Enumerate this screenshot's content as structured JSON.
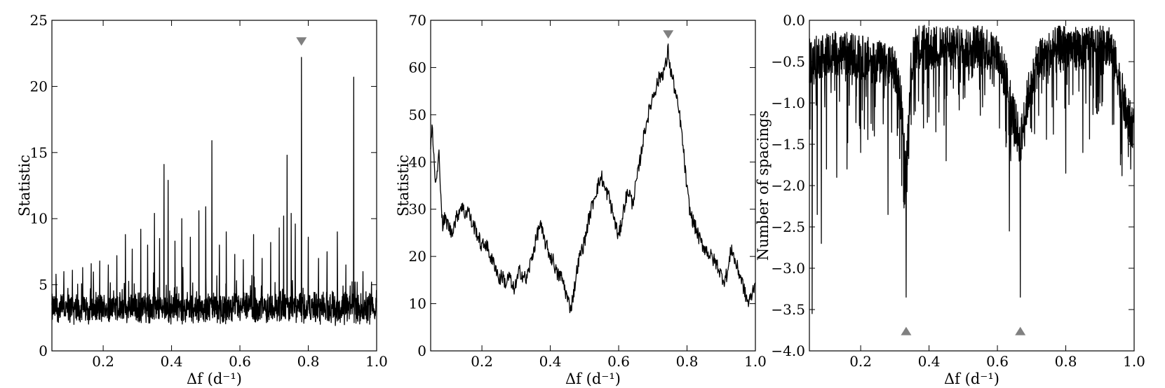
{
  "chart_data": [
    {
      "type": "line",
      "xlabel": "Δf (d⁻¹)",
      "ylabel": "Statistic",
      "xlim": [
        0.05,
        1.0
      ],
      "ylim": [
        0,
        25
      ],
      "xticks": [
        0.2,
        0.4,
        0.6,
        0.8,
        1.0
      ],
      "xtick_labels": [
        "0.2",
        "0.4",
        "0.6",
        "0.8",
        "1.0"
      ],
      "yticks": [
        0,
        5,
        10,
        15,
        20,
        25
      ],
      "ytick_labels": [
        "0",
        "5",
        "10",
        "15",
        "20",
        "25"
      ],
      "grid": false,
      "color": "#000000",
      "noise": {
        "baseline": 3.2,
        "amplitude": 1.1,
        "x_start": 0.05,
        "x_end": 1.0
      },
      "peaks": [
        {
          "x": 0.062,
          "y": 5.8
        },
        {
          "x": 0.085,
          "y": 6.0
        },
        {
          "x": 0.11,
          "y": 6.1
        },
        {
          "x": 0.14,
          "y": 6.3
        },
        {
          "x": 0.165,
          "y": 6.6
        },
        {
          "x": 0.19,
          "y": 6.8
        },
        {
          "x": 0.215,
          "y": 6.5
        },
        {
          "x": 0.24,
          "y": 7.2
        },
        {
          "x": 0.265,
          "y": 8.8
        },
        {
          "x": 0.285,
          "y": 7.7
        },
        {
          "x": 0.31,
          "y": 9.2
        },
        {
          "x": 0.33,
          "y": 8.0
        },
        {
          "x": 0.35,
          "y": 10.4
        },
        {
          "x": 0.365,
          "y": 8.5
        },
        {
          "x": 0.378,
          "y": 14.1
        },
        {
          "x": 0.39,
          "y": 12.9
        },
        {
          "x": 0.41,
          "y": 8.3
        },
        {
          "x": 0.43,
          "y": 10.0
        },
        {
          "x": 0.455,
          "y": 8.6
        },
        {
          "x": 0.48,
          "y": 10.6
        },
        {
          "x": 0.5,
          "y": 10.9
        },
        {
          "x": 0.518,
          "y": 15.9
        },
        {
          "x": 0.54,
          "y": 8.0
        },
        {
          "x": 0.56,
          "y": 9.0
        },
        {
          "x": 0.585,
          "y": 7.3
        },
        {
          "x": 0.61,
          "y": 6.9
        },
        {
          "x": 0.64,
          "y": 8.8
        },
        {
          "x": 0.665,
          "y": 7.0
        },
        {
          "x": 0.69,
          "y": 8.2
        },
        {
          "x": 0.715,
          "y": 9.3
        },
        {
          "x": 0.728,
          "y": 10.2
        },
        {
          "x": 0.738,
          "y": 14.8
        },
        {
          "x": 0.75,
          "y": 10.4
        },
        {
          "x": 0.762,
          "y": 9.6
        },
        {
          "x": 0.78,
          "y": 22.2
        },
        {
          "x": 0.8,
          "y": 8.6
        },
        {
          "x": 0.83,
          "y": 7.0
        },
        {
          "x": 0.855,
          "y": 7.5
        },
        {
          "x": 0.885,
          "y": 9.0
        },
        {
          "x": 0.91,
          "y": 6.5
        },
        {
          "x": 0.933,
          "y": 20.7
        },
        {
          "x": 0.96,
          "y": 6.0
        },
        {
          "x": 0.985,
          "y": 5.2
        }
      ],
      "markers": [
        {
          "x": 0.78,
          "y": 23.4,
          "shape": "triangle-down"
        }
      ]
    },
    {
      "type": "line",
      "xlabel": "Δf (d⁻¹)",
      "ylabel": "Statistic",
      "xlim": [
        0.05,
        1.0
      ],
      "ylim": [
        0,
        70
      ],
      "xticks": [
        0.2,
        0.4,
        0.6,
        0.8,
        1.0
      ],
      "xtick_labels": [
        "0.2",
        "0.4",
        "0.6",
        "0.8",
        "1.0"
      ],
      "yticks": [
        0,
        10,
        20,
        30,
        40,
        50,
        60,
        70
      ],
      "ytick_labels": [
        "0",
        "10",
        "20",
        "30",
        "40",
        "50",
        "60",
        "70"
      ],
      "grid": false,
      "color": "#000000",
      "x": [
        0.05,
        0.055,
        0.06,
        0.065,
        0.07,
        0.075,
        0.08,
        0.085,
        0.09,
        0.1,
        0.11,
        0.12,
        0.13,
        0.14,
        0.15,
        0.16,
        0.17,
        0.18,
        0.19,
        0.2,
        0.21,
        0.22,
        0.23,
        0.24,
        0.25,
        0.26,
        0.27,
        0.28,
        0.29,
        0.3,
        0.31,
        0.32,
        0.33,
        0.34,
        0.35,
        0.36,
        0.37,
        0.38,
        0.39,
        0.4,
        0.41,
        0.42,
        0.43,
        0.44,
        0.45,
        0.46,
        0.47,
        0.48,
        0.49,
        0.5,
        0.51,
        0.52,
        0.53,
        0.54,
        0.55,
        0.56,
        0.57,
        0.58,
        0.59,
        0.6,
        0.61,
        0.62,
        0.63,
        0.64,
        0.65,
        0.66,
        0.67,
        0.68,
        0.69,
        0.7,
        0.71,
        0.72,
        0.73,
        0.74,
        0.745,
        0.75,
        0.76,
        0.77,
        0.78,
        0.79,
        0.8,
        0.81,
        0.82,
        0.83,
        0.84,
        0.85,
        0.86,
        0.87,
        0.88,
        0.89,
        0.9,
        0.91,
        0.92,
        0.93,
        0.94,
        0.95,
        0.96,
        0.97,
        0.98,
        0.99,
        1.0
      ],
      "y": [
        44,
        47,
        40,
        35,
        38,
        42,
        33,
        26,
        28,
        27,
        25,
        27,
        29,
        31,
        29,
        30,
        27,
        26,
        24,
        22,
        23,
        21,
        19,
        18,
        15,
        16,
        14,
        16,
        13,
        14,
        17,
        16,
        15,
        18,
        21,
        24,
        27,
        24,
        22,
        20,
        19,
        16,
        16,
        14,
        11,
        9,
        13,
        18,
        21,
        23,
        27,
        30,
        33,
        35,
        37,
        34,
        33,
        30,
        27,
        24,
        28,
        32,
        34,
        31,
        35,
        39,
        44,
        48,
        51,
        54,
        56,
        58,
        59,
        61,
        64,
        60,
        57,
        53,
        49,
        42,
        34,
        29,
        27,
        25,
        23,
        22,
        21,
        20,
        19,
        18,
        16,
        15,
        17,
        22,
        19,
        17,
        15,
        12,
        10,
        12,
        15
      ],
      "markers": [
        {
          "x": 0.745,
          "y": 67,
          "shape": "triangle-down"
        }
      ]
    },
    {
      "type": "line",
      "xlabel": "Δf (d⁻¹)",
      "ylabel": "Number of spacings",
      "xlim": [
        0.05,
        1.0
      ],
      "ylim": [
        -4.0,
        0.0
      ],
      "xticks": [
        0.2,
        0.4,
        0.6,
        0.8,
        1.0
      ],
      "xtick_labels": [
        "0.2",
        "0.4",
        "0.6",
        "0.8",
        "1.0"
      ],
      "yticks": [
        -4.0,
        -3.5,
        -3.0,
        -2.5,
        -2.0,
        -1.5,
        -1.0,
        -0.5,
        0.0
      ],
      "ytick_labels": [
        "−4.0",
        "−3.5",
        "−3.0",
        "−2.5",
        "−2.0",
        "−1.5",
        "−1.0",
        "−0.5",
        "0.0"
      ],
      "grid": false,
      "color": "#000000",
      "envelope": {
        "x": [
          0.05,
          0.1,
          0.15,
          0.2,
          0.25,
          0.3,
          0.32,
          0.333,
          0.345,
          0.36,
          0.4,
          0.45,
          0.5,
          0.55,
          0.6,
          0.63,
          0.65,
          0.667,
          0.69,
          0.72,
          0.75,
          0.8,
          0.85,
          0.9,
          0.93,
          0.95,
          0.98,
          1.0
        ],
        "y": [
          -0.5,
          -0.4,
          -0.4,
          -0.45,
          -0.5,
          -0.6,
          -1.0,
          -1.9,
          -0.7,
          -0.3,
          -0.35,
          -0.3,
          -0.35,
          -0.3,
          -0.4,
          -0.8,
          -1.2,
          -1.5,
          -0.9,
          -0.5,
          -0.4,
          -0.3,
          -0.35,
          -0.25,
          -0.3,
          -0.6,
          -1.2,
          -1.3
        ]
      },
      "dips": [
        {
          "x": 0.058,
          "y": -3.55
        },
        {
          "x": 0.073,
          "y": -2.35
        },
        {
          "x": 0.085,
          "y": -2.7
        },
        {
          "x": 0.1,
          "y": -1.8
        },
        {
          "x": 0.13,
          "y": -1.9
        },
        {
          "x": 0.16,
          "y": -1.8
        },
        {
          "x": 0.2,
          "y": -1.6
        },
        {
          "x": 0.24,
          "y": -1.4
        },
        {
          "x": 0.28,
          "y": -2.35
        },
        {
          "x": 0.32,
          "y": -2.0
        },
        {
          "x": 0.333,
          "y": -3.35
        },
        {
          "x": 0.36,
          "y": -1.1
        },
        {
          "x": 0.42,
          "y": -1.35
        },
        {
          "x": 0.45,
          "y": -1.7
        },
        {
          "x": 0.5,
          "y": -0.95
        },
        {
          "x": 0.55,
          "y": -1.15
        },
        {
          "x": 0.59,
          "y": -0.8
        },
        {
          "x": 0.635,
          "y": -2.55
        },
        {
          "x": 0.667,
          "y": -3.35
        },
        {
          "x": 0.7,
          "y": -1.35
        },
        {
          "x": 0.76,
          "y": -1.05
        },
        {
          "x": 0.8,
          "y": -1.85
        },
        {
          "x": 0.85,
          "y": -1.6
        },
        {
          "x": 0.9,
          "y": -1.0
        },
        {
          "x": 0.96,
          "y": -1.75
        },
        {
          "x": 0.99,
          "y": -1.8
        }
      ],
      "markers": [
        {
          "x": 0.333,
          "y": -3.76,
          "shape": "triangle-up"
        },
        {
          "x": 0.667,
          "y": -3.76,
          "shape": "triangle-up"
        }
      ]
    }
  ]
}
